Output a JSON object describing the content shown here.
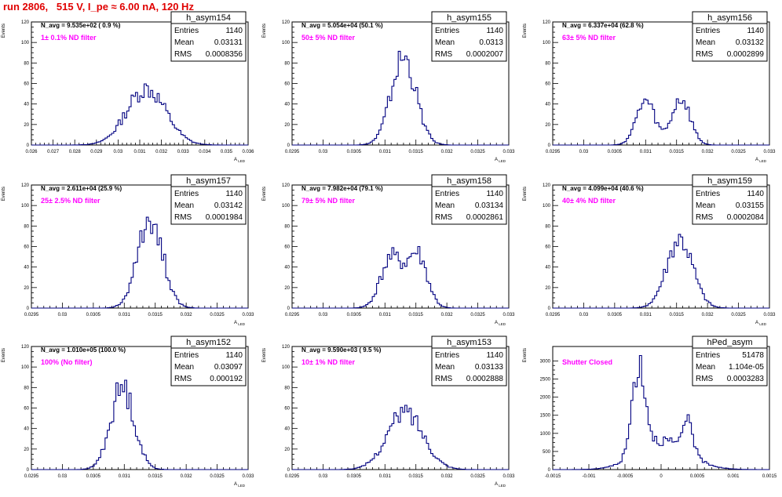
{
  "page_title": "run 2806,   515 V, I_pe ≈ 6.00 nA, 120 Hz",
  "colors": {
    "title": "#e00000",
    "histogram": "#000080",
    "filter_label": "#ff00ff"
  },
  "chart_data": [
    {
      "type": "bar",
      "name": "h_asym154",
      "header": "N_avg = 9.535e+02 ( 0.9 %)",
      "filter": "1± 0.1% ND filter",
      "stats": {
        "Entries": "1140",
        "Mean": "0.03131",
        "RMS": "0.0008356"
      },
      "ylabel": "Events",
      "xlabel": "A_LED",
      "xlim": [
        0.026,
        0.036
      ],
      "ylim": [
        0,
        120
      ],
      "xticks": [
        0.026,
        0.027,
        0.028,
        0.029,
        0.03,
        0.031,
        0.032,
        0.033,
        0.034,
        0.035,
        0.036
      ],
      "xtick_labels": [
        "0.026",
        "0.027",
        "0.028",
        "0.029",
        "0.03",
        "0.031",
        "0.032",
        "0.033",
        "0.034",
        "0.035",
        "0.036"
      ],
      "yticks": [
        0,
        20,
        40,
        60,
        80,
        100,
        120
      ],
      "peaks": [
        [
          0.0313,
          55,
          0.0009
        ]
      ],
      "ymax_obs": 63
    },
    {
      "type": "bar",
      "name": "h_asym155",
      "header": "N_avg = 5.054e+04 (50.1 %)",
      "filter": "50± 5% ND filter",
      "stats": {
        "Entries": "1140",
        "Mean": "0.0313",
        "RMS": "0.0002007"
      },
      "ylabel": "Events",
      "xlabel": "A_LED",
      "xlim": [
        0.0295,
        0.033
      ],
      "ylim": [
        0,
        120
      ],
      "xticks": [
        0.0295,
        0.03,
        0.0305,
        0.031,
        0.0315,
        0.032,
        0.0325,
        0.033
      ],
      "xtick_labels": [
        "0.0295",
        "0.03",
        "0.0305",
        "0.031",
        "0.0315",
        "0.032",
        "0.0325",
        "0.033"
      ],
      "yticks": [
        0,
        20,
        40,
        60,
        80,
        100,
        120
      ],
      "peaks": [
        [
          0.0313,
          85,
          0.0002
        ]
      ],
      "ymax_obs": 94
    },
    {
      "type": "bar",
      "name": "h_asym156",
      "header": "N_avg = 6.337e+04 (62.8 %)",
      "filter": "63± 5% ND filter",
      "stats": {
        "Entries": "1140",
        "Mean": "0.03132",
        "RMS": "0.0002899"
      },
      "ylabel": "Events",
      "xlabel": "A_LED",
      "xlim": [
        0.0295,
        0.033
      ],
      "ylim": [
        0,
        120
      ],
      "xticks": [
        0.0295,
        0.03,
        0.0305,
        0.031,
        0.0315,
        0.032,
        0.0325,
        0.033
      ],
      "xtick_labels": [
        "0.0295",
        "0.03",
        "0.0305",
        "0.031",
        "0.0315",
        "0.032",
        "0.0325",
        "0.033"
      ],
      "yticks": [
        0,
        20,
        40,
        60,
        80,
        100,
        120
      ],
      "peaks": [
        [
          0.031,
          42,
          0.00015
        ],
        [
          0.03157,
          44,
          0.00015
        ]
      ],
      "ymax_obs": 52
    },
    {
      "type": "bar",
      "name": "h_asym157",
      "header": "N_avg = 2.611e+04 (25.9 %)",
      "filter": "25± 2.5% ND filter",
      "stats": {
        "Entries": "1140",
        "Mean": "0.03142",
        "RMS": "0.0001984"
      },
      "ylabel": "Events",
      "xlabel": "A_LED",
      "xlim": [
        0.0295,
        0.033
      ],
      "ylim": [
        0,
        120
      ],
      "xticks": [
        0.0295,
        0.03,
        0.0305,
        0.031,
        0.0315,
        0.032,
        0.0325,
        0.033
      ],
      "xtick_labels": [
        "0.0295",
        "0.03",
        "0.0305",
        "0.031",
        "0.0315",
        "0.032",
        "0.0325",
        "0.033"
      ],
      "yticks": [
        0,
        20,
        40,
        60,
        80,
        100,
        120
      ],
      "peaks": [
        [
          0.03142,
          88,
          0.0002
        ]
      ],
      "ymax_obs": 96
    },
    {
      "type": "bar",
      "name": "h_asym158",
      "header": "N_avg = 7.982e+04 (79.1 %)",
      "filter": "79± 5% ND filter",
      "stats": {
        "Entries": "1140",
        "Mean": "0.03134",
        "RMS": "0.0002861"
      },
      "ylabel": "Events",
      "xlabel": "A_LED",
      "xlim": [
        0.0295,
        0.033
      ],
      "ylim": [
        0,
        120
      ],
      "xticks": [
        0.0295,
        0.03,
        0.0305,
        0.031,
        0.0315,
        0.032,
        0.0325,
        0.033
      ],
      "xtick_labels": [
        "0.0295",
        "0.03",
        "0.0305",
        "0.031",
        "0.0315",
        "0.032",
        "0.0325",
        "0.033"
      ],
      "yticks": [
        0,
        20,
        40,
        60,
        80,
        100,
        120
      ],
      "peaks": [
        [
          0.0311,
          48,
          0.00017
        ],
        [
          0.03152,
          52,
          0.00016
        ]
      ],
      "ymax_obs": 60
    },
    {
      "type": "bar",
      "name": "h_asym159",
      "header": "N_avg = 4.099e+04 (40.6 %)",
      "filter": "40± 4% ND filter",
      "stats": {
        "Entries": "1140",
        "Mean": "0.03155",
        "RMS": "0.0002084"
      },
      "ylabel": "Events",
      "xlabel": "A_LED",
      "xlim": [
        0.0295,
        0.033
      ],
      "ylim": [
        0,
        120
      ],
      "xticks": [
        0.0295,
        0.03,
        0.0305,
        0.031,
        0.0315,
        0.032,
        0.0325,
        0.033
      ],
      "xtick_labels": [
        "0.0295",
        "0.03",
        "0.0305",
        "0.031",
        "0.0315",
        "0.032",
        "0.0325",
        "0.033"
      ],
      "yticks": [
        0,
        20,
        40,
        60,
        80,
        100,
        120
      ],
      "peaks": [
        [
          0.03155,
          68,
          0.00021
        ]
      ],
      "ymax_obs": 76
    },
    {
      "type": "bar",
      "name": "h_asym152",
      "header": "N_avg = 1.010e+05 (100.0 %)",
      "filter": "100% (No filter)",
      "stats": {
        "Entries": "1140",
        "Mean": "0.03097",
        "RMS": "0.000192"
      },
      "ylabel": "Events",
      "xlabel": "A_LED",
      "xlim": [
        0.0295,
        0.033
      ],
      "ylim": [
        0,
        120
      ],
      "xticks": [
        0.0295,
        0.03,
        0.0305,
        0.031,
        0.0315,
        0.032,
        0.0325,
        0.033
      ],
      "xtick_labels": [
        "0.0295",
        "0.03",
        "0.0305",
        "0.031",
        "0.0315",
        "0.032",
        "0.0325",
        "0.033"
      ],
      "yticks": [
        0,
        20,
        40,
        60,
        80,
        100,
        120
      ],
      "peaks": [
        [
          0.03097,
          80,
          0.00019
        ]
      ],
      "ymax_obs": 88
    },
    {
      "type": "bar",
      "name": "h_asym153",
      "header": "N_avg = 9.590e+03 ( 9.5 %)",
      "filter": "10± 1% ND filter",
      "stats": {
        "Entries": "1140",
        "Mean": "0.03133",
        "RMS": "0.0002888"
      },
      "ylabel": "Events",
      "xlabel": "A_LED",
      "xlim": [
        0.0295,
        0.033
      ],
      "ylim": [
        0,
        120
      ],
      "xticks": [
        0.0295,
        0.03,
        0.0305,
        0.031,
        0.0315,
        0.032,
        0.0325,
        0.033
      ],
      "xtick_labels": [
        "0.0295",
        "0.03",
        "0.0305",
        "0.031",
        "0.0315",
        "0.032",
        "0.0325",
        "0.033"
      ],
      "yticks": [
        0,
        20,
        40,
        60,
        80,
        100,
        120
      ],
      "peaks": [
        [
          0.03133,
          56,
          0.00029
        ]
      ],
      "ymax_obs": 63
    },
    {
      "type": "bar",
      "name": "hPed_asym",
      "header": "",
      "filter": "Shutter Closed",
      "stats": {
        "Entries": "51478",
        "Mean": "1.104e-05",
        "RMS": "0.0003283"
      },
      "ylabel": "Events",
      "xlabel": "",
      "xlim": [
        -0.0015,
        0.0015
      ],
      "ylim": [
        0,
        3400
      ],
      "xticks": [
        -0.0015,
        -0.001,
        -0.0005,
        0,
        0.0005,
        0.001,
        0.0015
      ],
      "xtick_labels": [
        "-0.0015",
        "-0.001",
        "-0.0005",
        "0",
        "0.0005",
        "0.001",
        "0.0015"
      ],
      "yticks": [
        0,
        500,
        1000,
        1500,
        2000,
        2500,
        3000
      ],
      "peaks": [
        [
          -0.00031,
          2500,
          9e-05
        ],
        [
          0.00038,
          1000,
          6e-05
        ],
        [
          3e-05,
          800,
          0.00035
        ]
      ],
      "ymax_obs": 3150
    }
  ]
}
